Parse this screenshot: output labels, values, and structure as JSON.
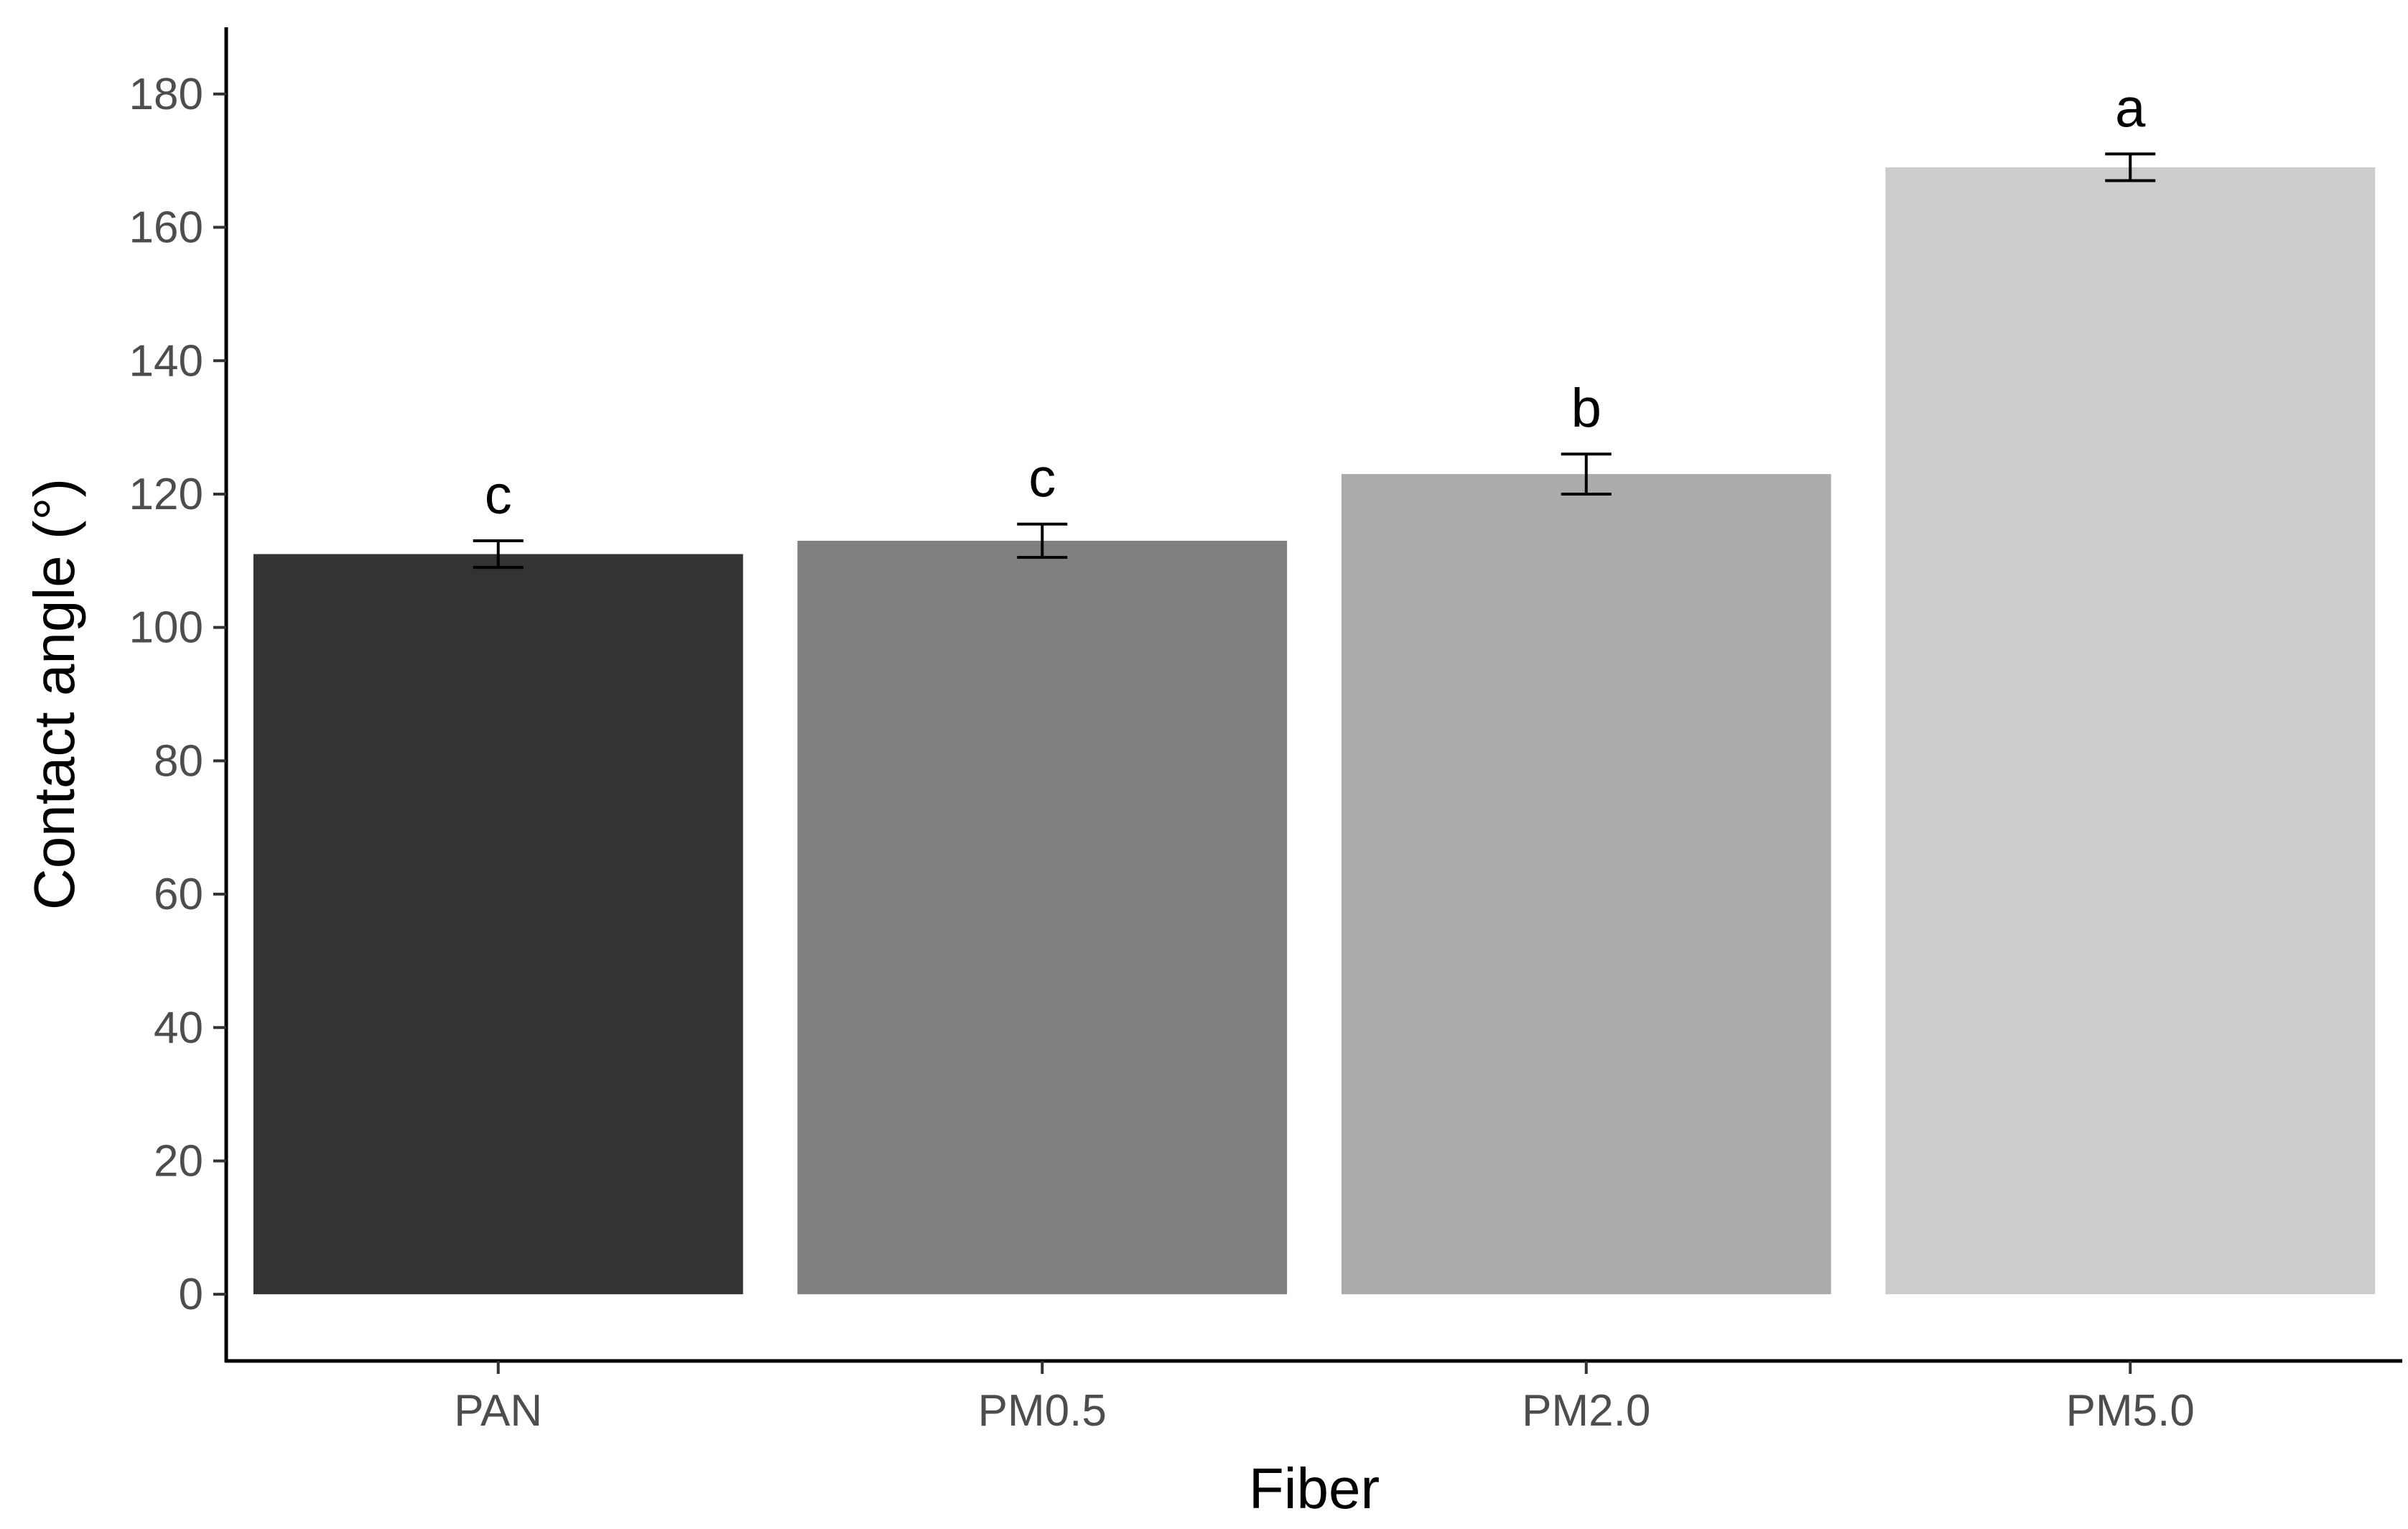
{
  "chart_data": {
    "type": "bar",
    "title": "",
    "xlabel": "Fiber",
    "ylabel": "Contact angle (°)",
    "categories": [
      "PAN",
      "PM0.5",
      "PM2.0",
      "PM5.0"
    ],
    "values": [
      111,
      113,
      123,
      169
    ],
    "error": [
      2,
      2.5,
      3,
      2
    ],
    "significance_labels": [
      "c",
      "c",
      "b",
      "a"
    ],
    "colors": [
      "#333333",
      "#808080",
      "#ababab",
      "#cccccc"
    ],
    "ylim": [
      -10,
      190
    ],
    "yticks": [
      0,
      20,
      40,
      60,
      80,
      100,
      120,
      140,
      160,
      180
    ],
    "grid": false,
    "legend": "none"
  }
}
